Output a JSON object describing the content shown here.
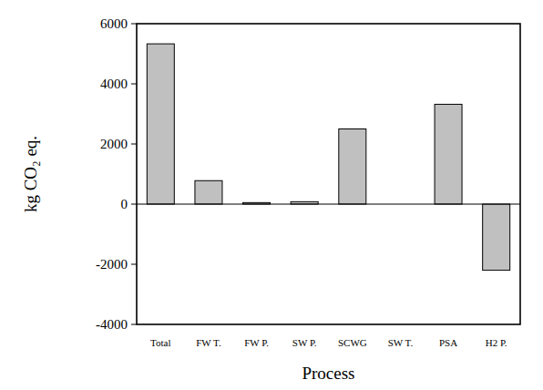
{
  "chart_data": {
    "type": "bar",
    "x_label": "Process",
    "y_label": "kg CO₂ eq.",
    "categories": [
      "Total",
      "FW T.",
      "FW P.",
      "SW P.",
      "SCWG",
      "SW T.",
      "PSA",
      "H2 P."
    ],
    "values": [
      5330,
      780,
      50,
      80,
      2500,
      0,
      3320,
      -2200
    ],
    "color": "#c0c0c0",
    "ylim": [
      -4000,
      6000
    ],
    "yticks": [
      -4000,
      -2000,
      0,
      2000,
      4000,
      6000
    ],
    "grid": false
  }
}
